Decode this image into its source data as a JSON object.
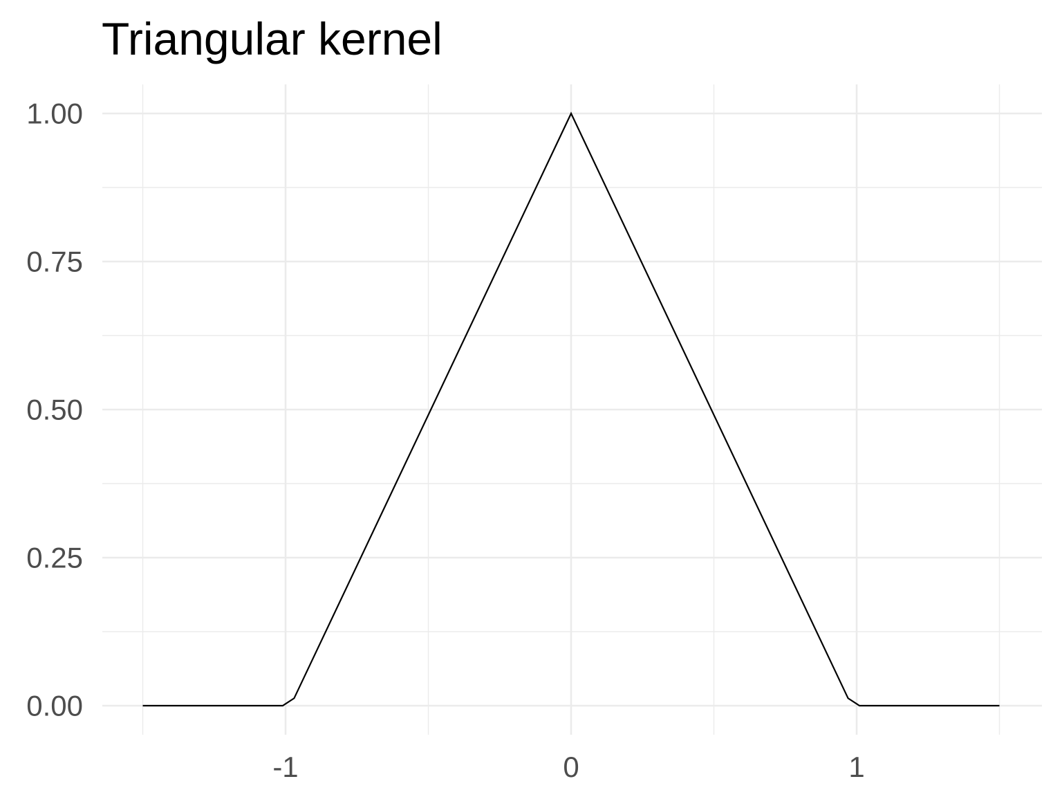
{
  "chart_data": {
    "type": "line",
    "title": "Triangular kernel",
    "xlabel": "",
    "ylabel": "",
    "xlim": [
      -1.5,
      1.5
    ],
    "ylim": [
      0,
      1
    ],
    "x_ticks": [
      -1,
      0,
      1
    ],
    "x_tick_labels": [
      "-1",
      "0",
      "1"
    ],
    "x_minor_ticks": [
      -1.5,
      -0.5,
      0.5,
      1.5
    ],
    "y_ticks": [
      0,
      0.25,
      0.5,
      0.75,
      1
    ],
    "y_tick_labels": [
      "0.00",
      "0.25",
      "0.50",
      "0.75",
      "1.00"
    ],
    "y_minor_ticks": [
      0.125,
      0.375,
      0.625,
      0.875
    ],
    "grid": true,
    "legend": "none",
    "series": [
      {
        "color": "#000000",
        "x": [
          -1.5,
          -1.01,
          -0.97,
          0,
          0.97,
          1.01,
          1.5
        ],
        "y": [
          0,
          0,
          0.0125,
          1,
          0.0125,
          0,
          0
        ]
      }
    ]
  }
}
